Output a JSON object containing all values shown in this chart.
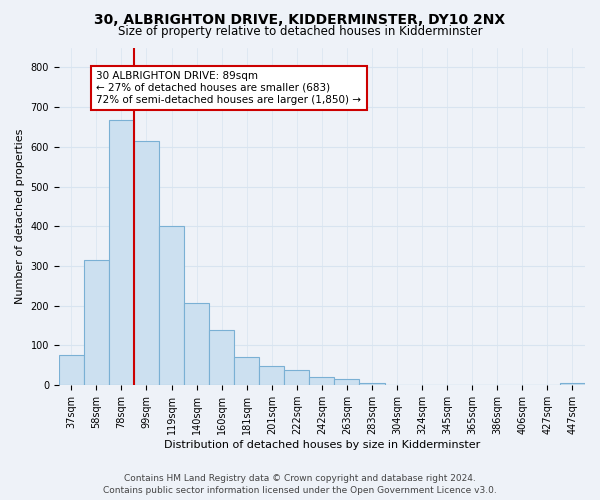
{
  "title": "30, ALBRIGHTON DRIVE, KIDDERMINSTER, DY10 2NX",
  "subtitle": "Size of property relative to detached houses in Kidderminster",
  "xlabel": "Distribution of detached houses by size in Kidderminster",
  "ylabel": "Number of detached properties",
  "categories": [
    "37sqm",
    "58sqm",
    "78sqm",
    "99sqm",
    "119sqm",
    "140sqm",
    "160sqm",
    "181sqm",
    "201sqm",
    "222sqm",
    "242sqm",
    "263sqm",
    "283sqm",
    "304sqm",
    "324sqm",
    "345sqm",
    "365sqm",
    "386sqm",
    "406sqm",
    "427sqm",
    "447sqm"
  ],
  "values": [
    75,
    315,
    668,
    615,
    400,
    207,
    138,
    70,
    48,
    38,
    20,
    15,
    5,
    0,
    0,
    0,
    0,
    0,
    0,
    0,
    5
  ],
  "bar_color": "#cce0f0",
  "bar_edge_color": "#7ab0d4",
  "property_line_color": "#cc0000",
  "annotation_text": "30 ALBRIGHTON DRIVE: 89sqm\n← 27% of detached houses are smaller (683)\n72% of semi-detached houses are larger (1,850) →",
  "annotation_box_facecolor": "#ffffff",
  "annotation_box_edgecolor": "#cc0000",
  "ylim": [
    0,
    850
  ],
  "yticks": [
    0,
    100,
    200,
    300,
    400,
    500,
    600,
    700,
    800
  ],
  "grid_color": "#d8e4f0",
  "background_color": "#eef2f8",
  "footer_line1": "Contains HM Land Registry data © Crown copyright and database right 2024.",
  "footer_line2": "Contains public sector information licensed under the Open Government Licence v3.0.",
  "prop_line_bar_index": 2.5,
  "title_fontsize": 10,
  "subtitle_fontsize": 8.5,
  "axis_label_fontsize": 8,
  "tick_fontsize": 7,
  "annotation_fontsize": 7.5,
  "footer_fontsize": 6.5
}
